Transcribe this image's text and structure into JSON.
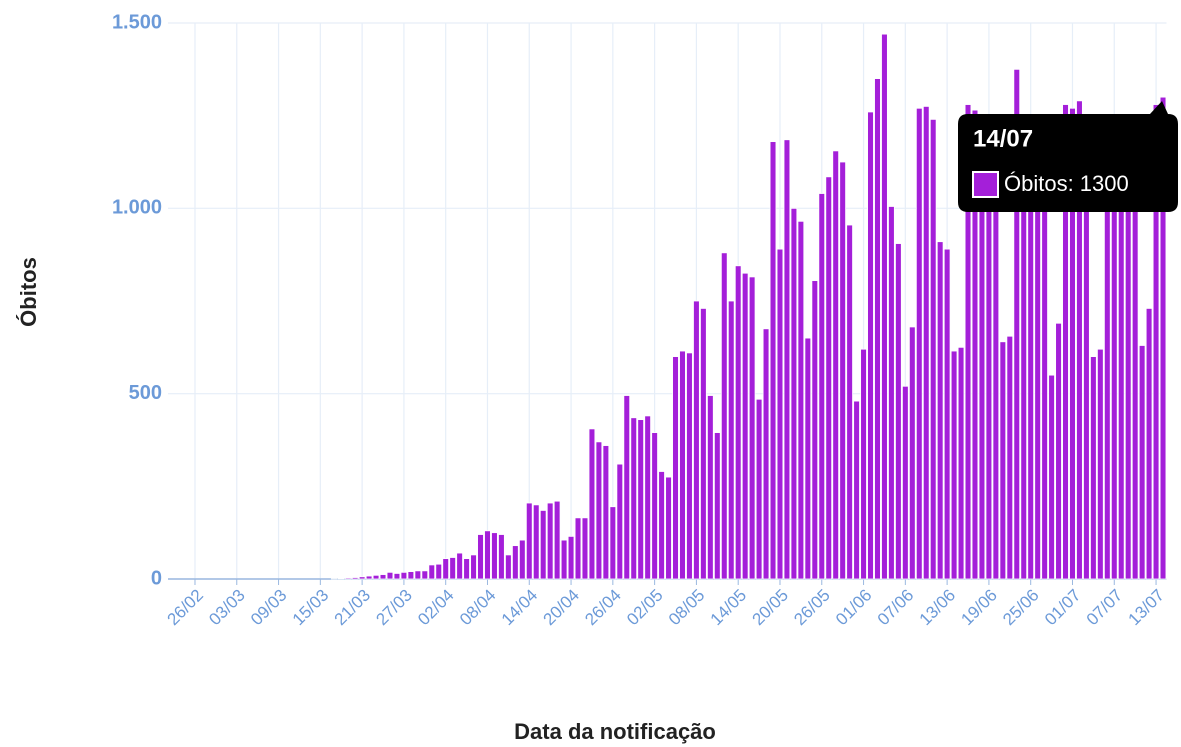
{
  "chart_data": {
    "type": "bar",
    "x_label": "Data da notificação",
    "y_label": "Óbitos",
    "color": "#a41fd9",
    "grid": true,
    "categories": [
      "26/02",
      null,
      null,
      null,
      null,
      null,
      "03/03",
      null,
      null,
      null,
      null,
      null,
      "09/03",
      null,
      null,
      null,
      null,
      null,
      "15/03",
      null,
      null,
      null,
      null,
      null,
      "21/03",
      null,
      null,
      null,
      null,
      null,
      "27/03",
      null,
      null,
      null,
      null,
      null,
      "02/04",
      null,
      null,
      null,
      null,
      null,
      "08/04",
      null,
      null,
      null,
      null,
      null,
      "14/04",
      null,
      null,
      null,
      null,
      null,
      "20/04",
      null,
      null,
      null,
      null,
      null,
      "26/04",
      null,
      null,
      null,
      null,
      null,
      "02/05",
      null,
      null,
      null,
      null,
      null,
      "08/05",
      null,
      null,
      null,
      null,
      null,
      "14/05",
      null,
      null,
      null,
      null,
      null,
      "20/05",
      null,
      null,
      null,
      null,
      null,
      "26/05",
      null,
      null,
      null,
      null,
      null,
      "01/06",
      null,
      null,
      null,
      null,
      null,
      "07/06",
      null,
      null,
      null,
      null,
      null,
      "13/06",
      null,
      null,
      null,
      null,
      null,
      "19/06",
      null,
      null,
      null,
      null,
      null,
      "25/06",
      null,
      null,
      null,
      null,
      null,
      "01/07",
      null,
      null,
      null,
      null,
      null,
      "07/07",
      null,
      null,
      null,
      null,
      null,
      "13/07",
      null
    ],
    "values": [
      0,
      0,
      0,
      0,
      0,
      0,
      0,
      0,
      0,
      0,
      0,
      0,
      0,
      0,
      0,
      0,
      0,
      0,
      0,
      0,
      1,
      2,
      3,
      4,
      6,
      8,
      10,
      12,
      18,
      15,
      18,
      20,
      22,
      22,
      38,
      40,
      55,
      58,
      70,
      55,
      65,
      120,
      130,
      125,
      120,
      65,
      90,
      105,
      205,
      200,
      185,
      205,
      210,
      105,
      115,
      165,
      165,
      405,
      370,
      360,
      195,
      310,
      495,
      435,
      430,
      440,
      395,
      290,
      275,
      600,
      615,
      610,
      750,
      730,
      495,
      395,
      880,
      750,
      845,
      825,
      815,
      485,
      675,
      1180,
      890,
      1185,
      1000,
      965,
      650,
      805,
      1040,
      1085,
      1155,
      1125,
      955,
      480,
      620,
      1260,
      1350,
      1470,
      1005,
      905,
      520,
      680,
      1270,
      1275,
      1240,
      910,
      890,
      615,
      625,
      1280,
      1265,
      1230,
      1200,
      1100,
      640,
      655,
      1375,
      1180,
      1150,
      1050,
      1020,
      550,
      690,
      1280,
      1270,
      1290,
      1200,
      600,
      620,
      1220,
      1250,
      1200,
      1210,
      1180,
      630,
      730,
      1280,
      1300
    ],
    "ylim": [
      0,
      1500
    ],
    "yticks": [
      0,
      500,
      {
        "value": 1000,
        "label": "1.000"
      },
      {
        "value": 1500,
        "label": "1.500"
      }
    ],
    "tooltip": {
      "title": "14/07",
      "text": "Óbitos: 1300"
    }
  }
}
